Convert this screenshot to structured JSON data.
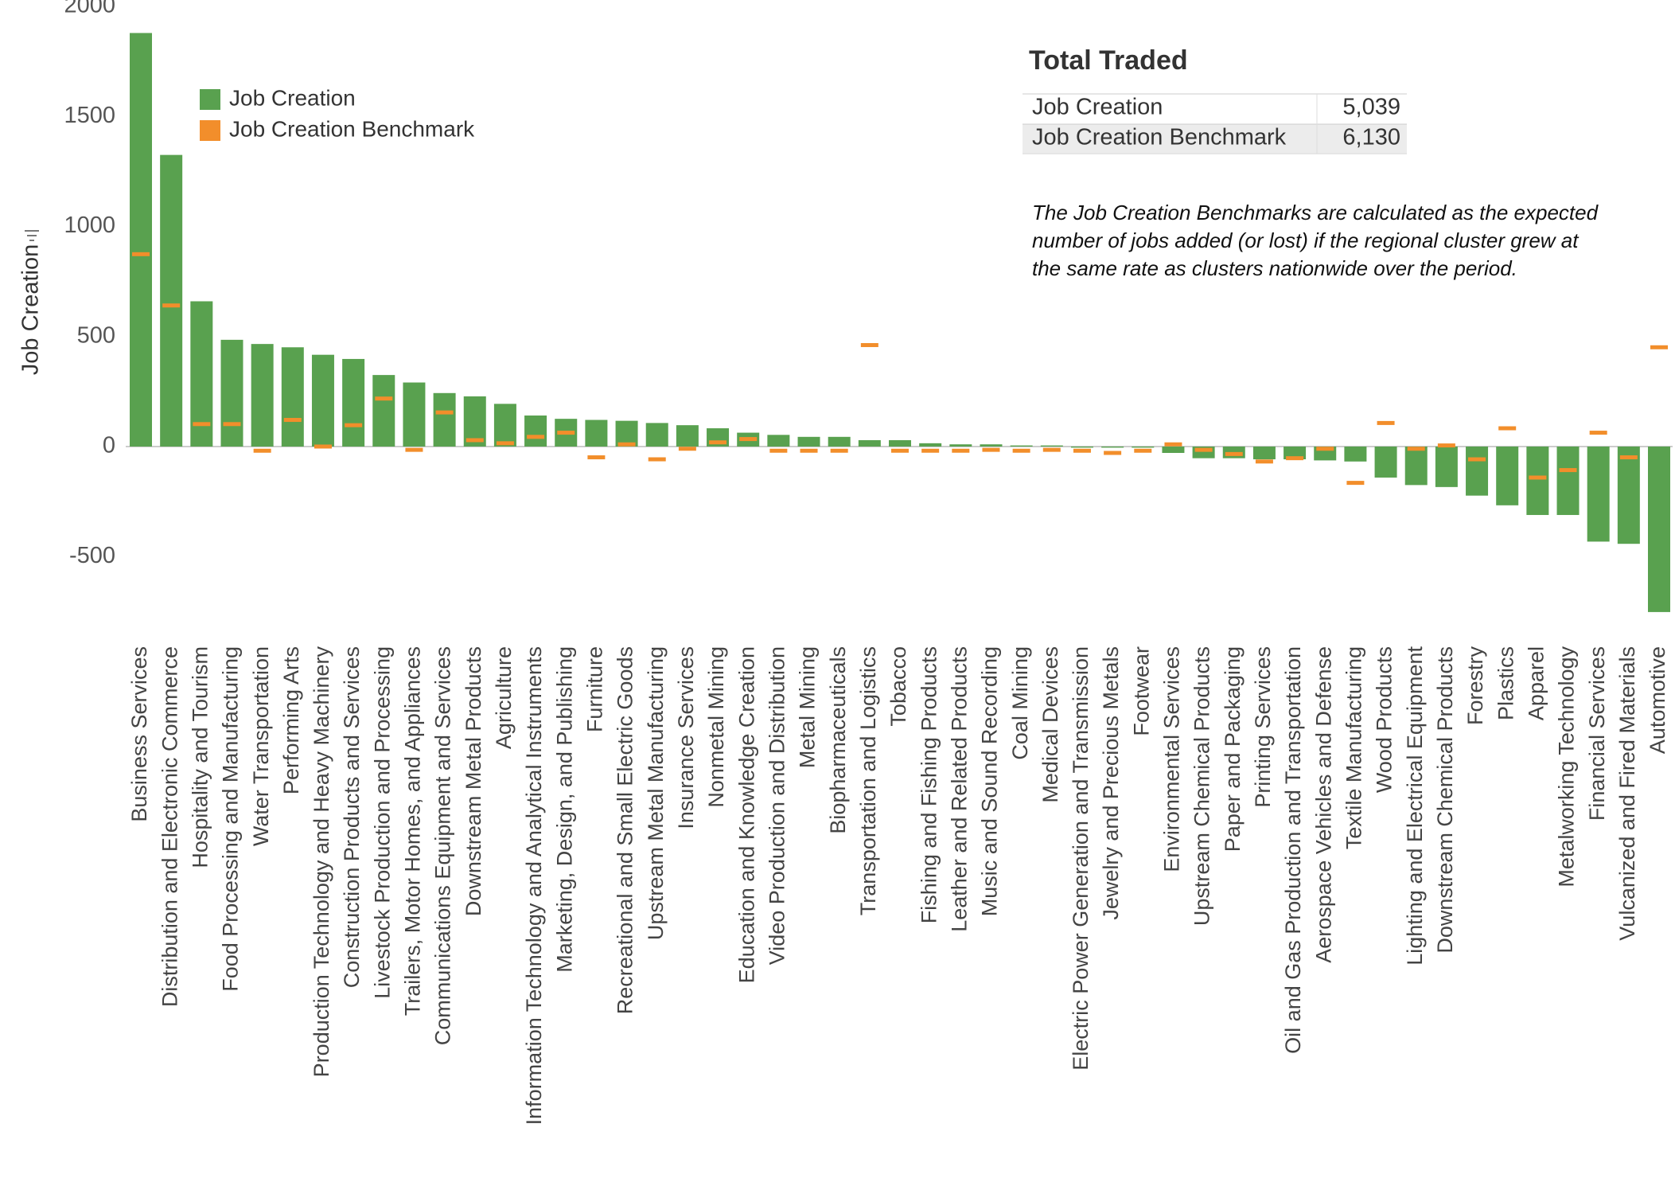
{
  "chart_data": {
    "type": "bar",
    "y_axis_label": "Job Creation",
    "categories": [
      "Business Services",
      "Distribution and Electronic Commerce",
      "Hospitality and Tourism",
      "Food Processing and Manufacturing",
      "Water Transportation",
      "Performing Arts",
      "Production Technology and Heavy Machinery",
      "Construction Products and Services",
      "Livestock Production and Processing",
      "Trailers, Motor Homes, and Appliances",
      "Communications Equipment and Services",
      "Downstream Metal Products",
      "Agriculture",
      "Information Technology and Analytical Instruments",
      "Marketing, Design, and Publishing",
      "Furniture",
      "Recreational and Small Electric Goods",
      "Upstream Metal Manufacturing",
      "Insurance Services",
      "Nonmetal Mining",
      "Education and Knowledge Creation",
      "Video Production and Distribution",
      "Metal Mining",
      "Biopharmaceuticals",
      "Transportation and Logistics",
      "Tobacco",
      "Fishing and Fishing Products",
      "Leather and Related Products",
      "Music and Sound Recording",
      "Coal Mining",
      "Medical Devices",
      "Electric Power Generation and Transmission",
      "Jewelry and Precious Metals",
      "Footwear",
      "Environmental Services",
      "Upstream Chemical Products",
      "Paper and Packaging",
      "Printing Services",
      "Oil and Gas Production and Transportation",
      "Aerospace Vehicles and Defense",
      "Textile Manufacturing",
      "Wood Products",
      "Lighting and Electrical Equipment",
      "Downstream Chemical Products",
      "Forestry",
      "Plastics",
      "Apparel",
      "Metalworking Technology",
      "Financial Services",
      "Vulcanized and Fired Materials",
      "Automotive"
    ],
    "series": [
      {
        "name": "Job Creation",
        "color": "#59a14f",
        "values": [
          1879,
          1325,
          660,
          485,
          466,
          451,
          417,
          398,
          325,
          291,
          243,
          228,
          194,
          141,
          126,
          121,
          117,
          107,
          97,
          83,
          63,
          53,
          44,
          44,
          29,
          29,
          15,
          10,
          10,
          5,
          5,
          -5,
          -5,
          -5,
          -29,
          -53,
          -53,
          -58,
          -58,
          -63,
          -68,
          -141,
          -175,
          -184,
          -223,
          -267,
          -311,
          -311,
          -432,
          -442,
          -752
        ]
      },
      {
        "name": "Job Creation Benchmark",
        "color": "#f28e2b",
        "values": [
          874,
          641,
          102,
          102,
          -19,
          121,
          0,
          97,
          218,
          -15,
          155,
          29,
          15,
          44,
          63,
          -49,
          10,
          -58,
          -10,
          19,
          34,
          -19,
          -19,
          -19,
          461,
          -19,
          -19,
          -19,
          -15,
          -19,
          -15,
          -19,
          -29,
          -19,
          10,
          -15,
          -34,
          -68,
          -53,
          -10,
          -165,
          107,
          -10,
          5,
          -58,
          83,
          -141,
          -107,
          63,
          -49,
          451
        ]
      }
    ],
    "ylim": [
      -850,
      2000
    ],
    "yticks": [
      -500,
      0,
      500,
      1000,
      1500,
      2000
    ],
    "grid": false,
    "summary": {
      "title": "Total Traded",
      "rows": [
        [
          "Job Creation",
          "5,039"
        ],
        [
          "Job Creation Benchmark",
          "6,130"
        ]
      ]
    },
    "note": [
      "The Job Creation Benchmarks are calculated as the expected",
      "number of jobs added (or lost) if  the regional cluster grew at",
      "the same rate as clusters nationwide over the period."
    ]
  }
}
